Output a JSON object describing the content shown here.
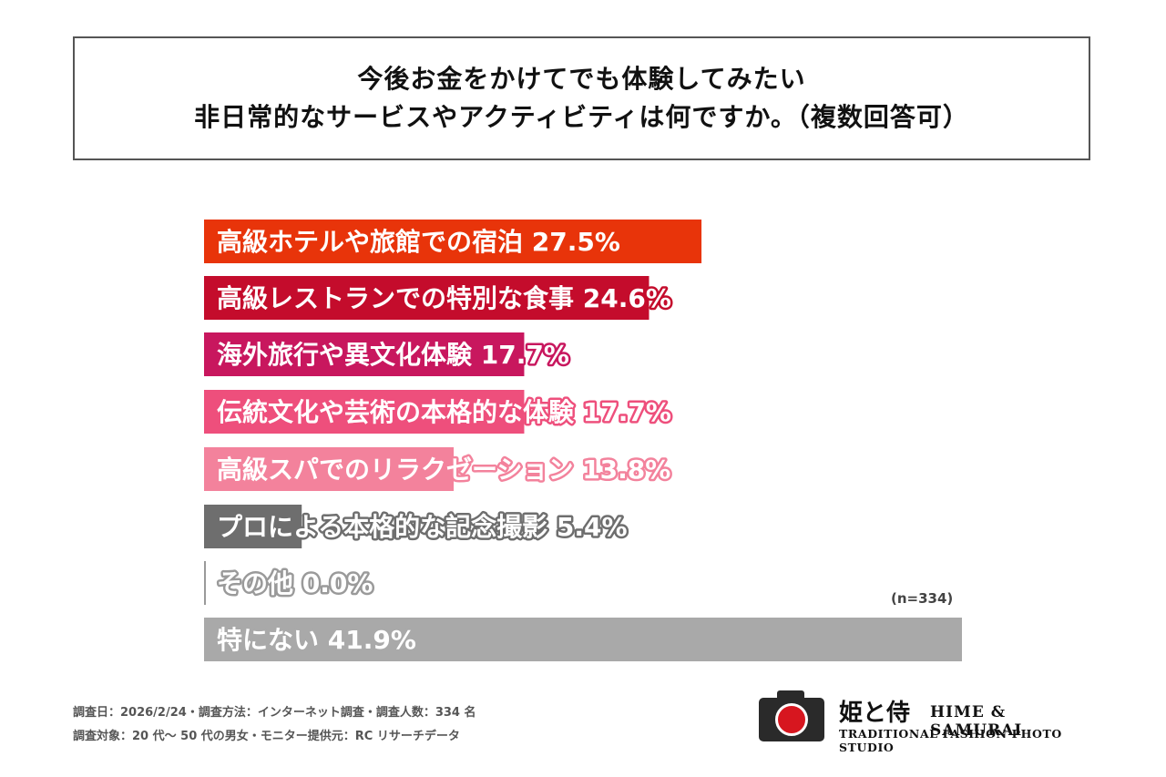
{
  "title": {
    "line1": "今後お金をかけてでも体験してみたい",
    "line2": "非日常的なサービスやアクティビティは何ですか。（複数回答可）"
  },
  "chart_data": {
    "type": "bar",
    "orientation": "horizontal",
    "categories": [
      "高級ホテルや旅館での宿泊",
      "高級レストランでの特別な食事",
      "海外旅行や異文化体験",
      "伝統文化や芸術の本格的な体験",
      "高級スパでのリラクゼーション",
      "プロによる本格的な記念撮影",
      "その他",
      "特にない"
    ],
    "values": [
      27.5,
      24.6,
      17.7,
      17.7,
      13.8,
      5.4,
      0.0,
      41.9
    ],
    "value_labels": [
      "27.5%",
      "24.6%",
      "17.7%",
      "17.7%",
      "13.8%",
      "5.4%",
      "0.0%",
      "41.9%"
    ],
    "colors": [
      "#e8340a",
      "#c40c2c",
      "#c8175e",
      "#ee4f7c",
      "#f3829c",
      "#6e6e6e",
      "#9a9a9a",
      "#a9a9a9"
    ],
    "xlim": [
      0,
      41.9
    ],
    "grid": false,
    "legend": "none"
  },
  "note": "(n=334)",
  "footer": {
    "line1": "調査日：2026/2/24・調査方法：インターネット調査・調査人数：334 名",
    "line2": "調査対象：20 代〜 50 代の男女・モニター提供元：RC リサーチデータ"
  },
  "logo": {
    "jp": "姫と侍",
    "en": "HIME & SAMURAI",
    "sub": "TRADITIONAL FASHION PHOTO STUDIO"
  }
}
